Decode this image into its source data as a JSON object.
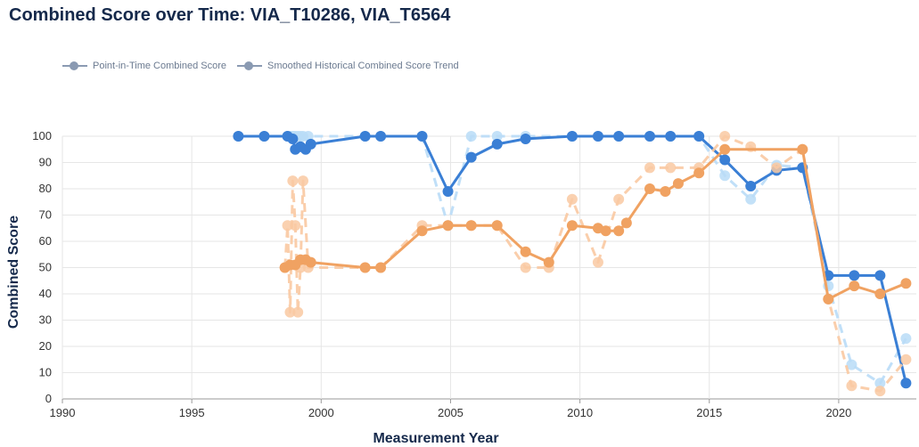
{
  "chart_data": {
    "type": "line",
    "title": "Combined Score over Time: VIA_T10286, VIA_T6564",
    "xlabel": "Measurement Year",
    "ylabel": "Combined Score",
    "xlim": [
      1990,
      2023
    ],
    "ylim": [
      0,
      100
    ],
    "x_ticks": [
      1990,
      1995,
      2000,
      2005,
      2010,
      2015,
      2020
    ],
    "y_ticks": [
      0,
      10,
      20,
      30,
      40,
      50,
      60,
      70,
      80,
      90,
      100
    ],
    "legend": [
      "Point-in-Time Combined Score",
      "Smoothed Historical Combined Score Trend"
    ],
    "legend_position": "top-left",
    "grid": true,
    "colors": {
      "blue_smoothed": "#3a7fd5",
      "blue_point": "#b9dcf7",
      "orange_smoothed": "#f0a262",
      "orange_point": "#f9c9a2",
      "grid": "#e6e6e6"
    },
    "series": [
      {
        "style": "point-in-time",
        "color": "#b9dcf7",
        "x": [
          1996.8,
          1997.8,
          1998.7,
          1998.8,
          1998.9,
          1999.0,
          1999.1,
          1999.2,
          1999.3,
          1999.5,
          2001.7,
          2002.3,
          2003.9,
          2004.9,
          2005.8,
          2006.8,
          2007.9,
          2009.7,
          2010.7,
          2011.5,
          2012.7,
          2013.5,
          2014.6,
          2015.6,
          2016.6,
          2017.6,
          2018.6,
          2019.6,
          2020.5,
          2021.6,
          2022.6
        ],
        "values": [
          100,
          100,
          100,
          100,
          100,
          100,
          100,
          100,
          100,
          100,
          100,
          100,
          100,
          66,
          100,
          100,
          100,
          100,
          100,
          100,
          100,
          100,
          100,
          85,
          76,
          89,
          88,
          43,
          13,
          6,
          23
        ]
      },
      {
        "style": "smoothed",
        "color": "#3a7fd5",
        "x": [
          1996.8,
          1997.8,
          1998.7,
          1998.9,
          1999.0,
          1999.2,
          1999.4,
          1999.6,
          2001.7,
          2002.3,
          2003.9,
          2004.9,
          2005.8,
          2006.8,
          2007.9,
          2009.7,
          2010.7,
          2011.5,
          2012.7,
          2013.5,
          2014.6,
          2015.6,
          2016.6,
          2017.6,
          2018.6,
          2019.6,
          2020.6,
          2021.6,
          2022.6
        ],
        "values": [
          100,
          100,
          100,
          99,
          95,
          96,
          95,
          97,
          100,
          100,
          100,
          79,
          92,
          97,
          99,
          100,
          100,
          100,
          100,
          100,
          100,
          91,
          81,
          87,
          88,
          47,
          47,
          47,
          6
        ]
      },
      {
        "style": "point-in-time",
        "color": "#f9c9a2",
        "x": [
          1998.6,
          1998.7,
          1998.8,
          1998.9,
          1999.0,
          1999.1,
          1999.2,
          1999.3,
          1999.5,
          2001.7,
          2002.3,
          2003.9,
          2004.9,
          2005.8,
          2006.8,
          2007.9,
          2008.8,
          2009.7,
          2010.7,
          2011.5,
          2012.7,
          2013.5,
          2014.6,
          2015.6,
          2016.6,
          2017.6,
          2018.6,
          2019.6,
          2020.5,
          2021.6,
          2022.6
        ],
        "values": [
          50,
          66,
          33,
          83,
          66,
          33,
          50,
          83,
          50,
          50,
          50,
          66,
          66,
          66,
          66,
          50,
          50,
          76,
          52,
          76,
          88,
          88,
          88,
          100,
          96,
          88,
          95,
          38,
          5,
          3,
          15
        ]
      },
      {
        "style": "smoothed",
        "color": "#f0a262",
        "x": [
          1998.6,
          1998.8,
          1999.0,
          1999.2,
          1999.4,
          1999.6,
          2001.7,
          2002.3,
          2003.9,
          2004.9,
          2005.8,
          2006.8,
          2007.9,
          2008.8,
          2009.7,
          2010.7,
          2011.0,
          2011.5,
          2011.8,
          2012.7,
          2013.3,
          2013.8,
          2014.6,
          2015.6,
          2018.6,
          2019.6,
          2020.6,
          2021.6,
          2022.6
        ],
        "values": [
          50,
          51,
          51,
          53,
          53,
          52,
          50,
          50,
          64,
          66,
          66,
          66,
          56,
          52,
          66,
          65,
          64,
          64,
          67,
          80,
          79,
          82,
          86,
          95,
          95,
          38,
          43,
          40,
          44
        ]
      }
    ]
  }
}
